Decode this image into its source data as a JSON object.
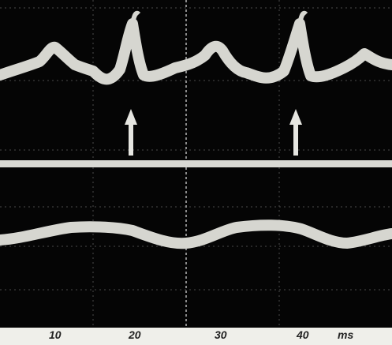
{
  "figure": {
    "scale_labels": [
      "10",
      "20",
      "30",
      "40",
      "ms"
    ]
  }
}
